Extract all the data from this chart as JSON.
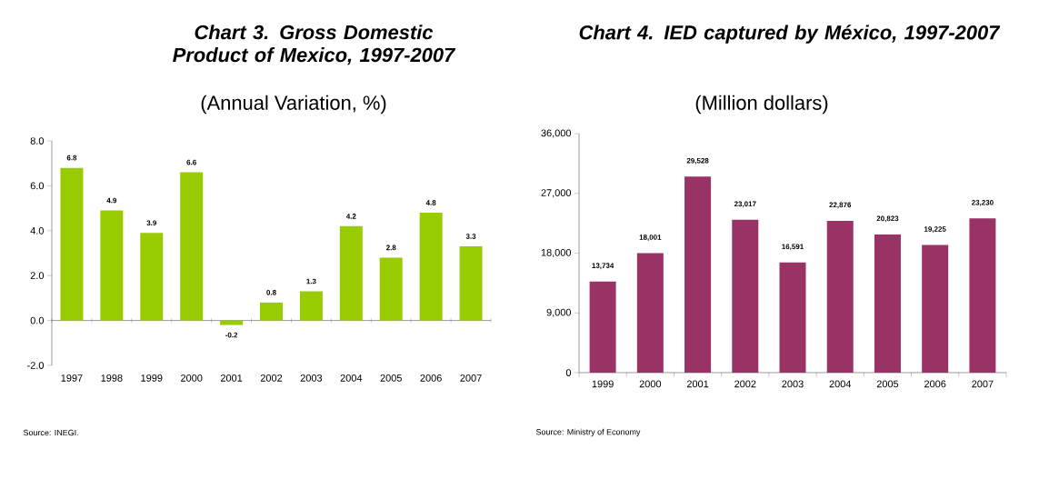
{
  "chart_data": [
    {
      "type": "bar",
      "title": "Chart 3. Gross Domestic Product of Mexico, 1997-2007",
      "subtitle": "(Annual Variation, %)",
      "categories": [
        "1997",
        "1998",
        "1999",
        "2000",
        "2001",
        "2002",
        "2003",
        "2004",
        "2005",
        "2006",
        "2007"
      ],
      "values": [
        6.8,
        4.9,
        3.9,
        6.6,
        -0.2,
        0.8,
        1.3,
        4.2,
        2.8,
        4.8,
        3.3
      ],
      "color": "#99cc00",
      "data_labels": true,
      "ylim": [
        -2,
        8
      ],
      "yticks": [
        {
          "value": -2,
          "label": "-2.0"
        },
        {
          "value": 0,
          "label": "0.0"
        },
        {
          "value": 2,
          "label": "2.0"
        },
        {
          "value": 4,
          "label": "4.0"
        },
        {
          "value": 6,
          "label": "6.0"
        },
        {
          "value": 8,
          "label": "8.0"
        }
      ],
      "annotations": [
        "Source: INEGI."
      ]
    },
    {
      "type": "bar",
      "title": "Chart  4. IED captured by México, 1997-2007",
      "subtitle": "(Million dollars)",
      "categories": [
        "1999",
        "2000",
        "2001",
        "2002",
        "2003",
        "2004",
        "2005",
        "2006",
        "2007"
      ],
      "values": [
        13734,
        18001,
        29528,
        23017,
        16591,
        22876,
        20823,
        19225,
        23230
      ],
      "value_labels": [
        "13,734",
        "18,001",
        "29,528",
        "23,017",
        "16,591",
        "22,876",
        "20,823",
        "19,225",
        "23,230"
      ],
      "color": "#993366",
      "ylim": [
        0,
        36000
      ],
      "yticks": [
        0,
        {
          "value": 9000,
          "label": "9,000"
        },
        {
          "value": 18000,
          "label": "18,000"
        },
        {
          "value": 27000,
          "label": "27,000"
        },
        {
          "value": 36000,
          "label": "36,000"
        }
      ],
      "annotations": [
        "Source: Ministry of  Economy"
      ]
    }
  ]
}
